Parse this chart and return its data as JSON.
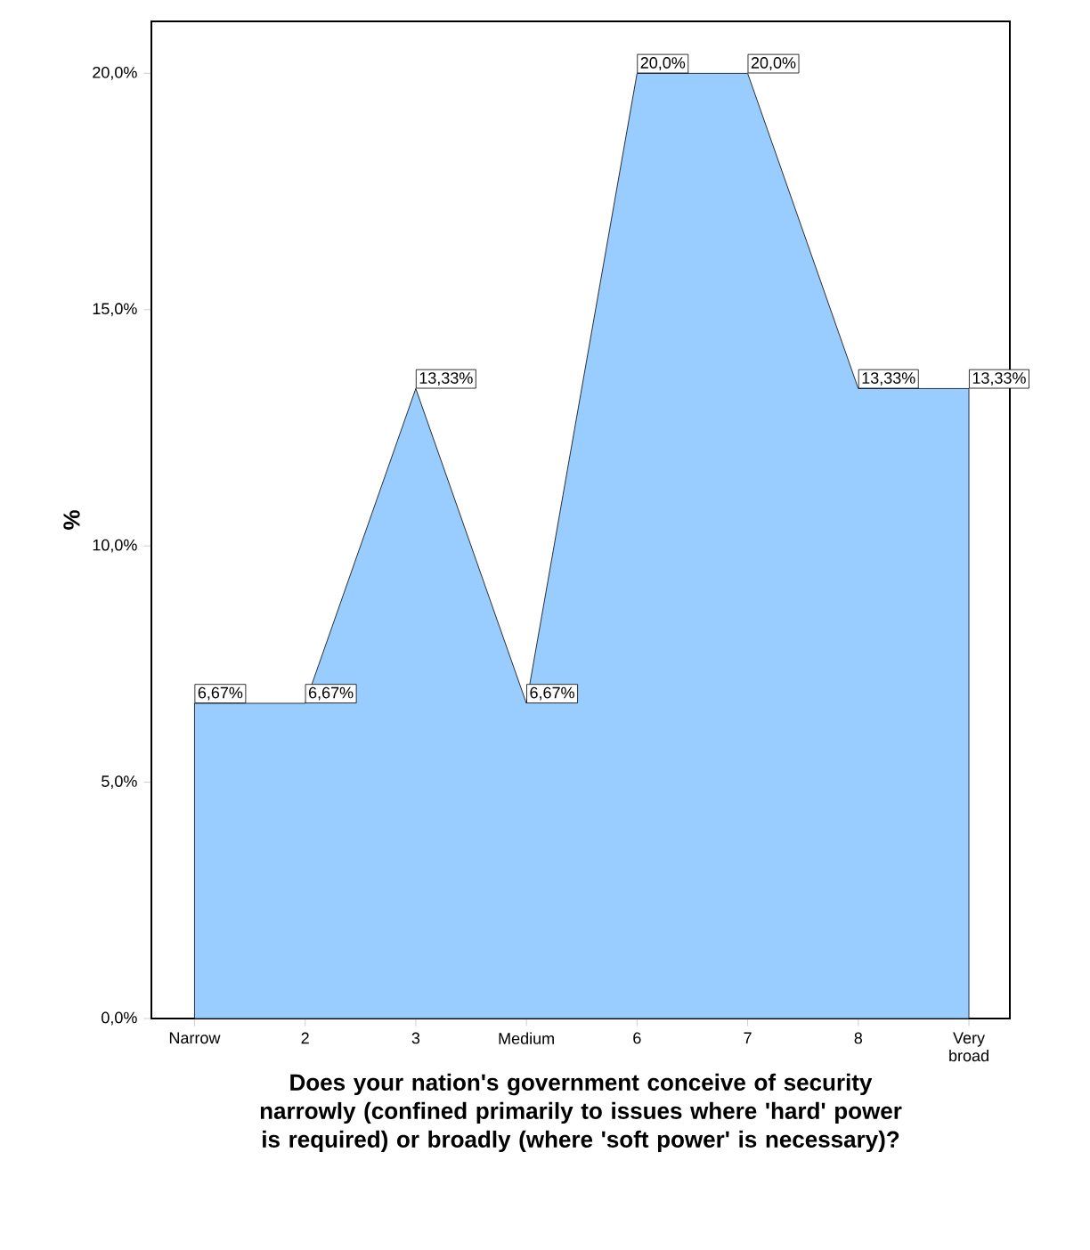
{
  "chart_data": {
    "type": "area",
    "xlabel": "Does your nation's government conceive of security narrowly (confined primarily to issues where 'hard' power is required) or broadly (where 'soft power' is necessary)?",
    "ylabel": "%",
    "categories": [
      "Narrow",
      "2",
      "3",
      "Medium",
      "6",
      "7",
      "8",
      "Very broad"
    ],
    "values": [
      6.67,
      6.67,
      13.33,
      6.67,
      20.0,
      20.0,
      13.33,
      13.33
    ],
    "value_labels": [
      "6,67%",
      "6,67%",
      "13,33%",
      "6,67%",
      "20,0%",
      "20,0%",
      "13,33%",
      "13,33%"
    ],
    "color": "#99ccff",
    "ylim": [
      0,
      21.1
    ],
    "yticks": [
      {
        "value": 0,
        "label": "0,0%"
      },
      {
        "value": 5,
        "label": "5,0%"
      },
      {
        "value": 10,
        "label": "10,0%"
      },
      {
        "value": 15,
        "label": "15,0%"
      },
      {
        "value": 20,
        "label": "20,0%"
      }
    ]
  }
}
